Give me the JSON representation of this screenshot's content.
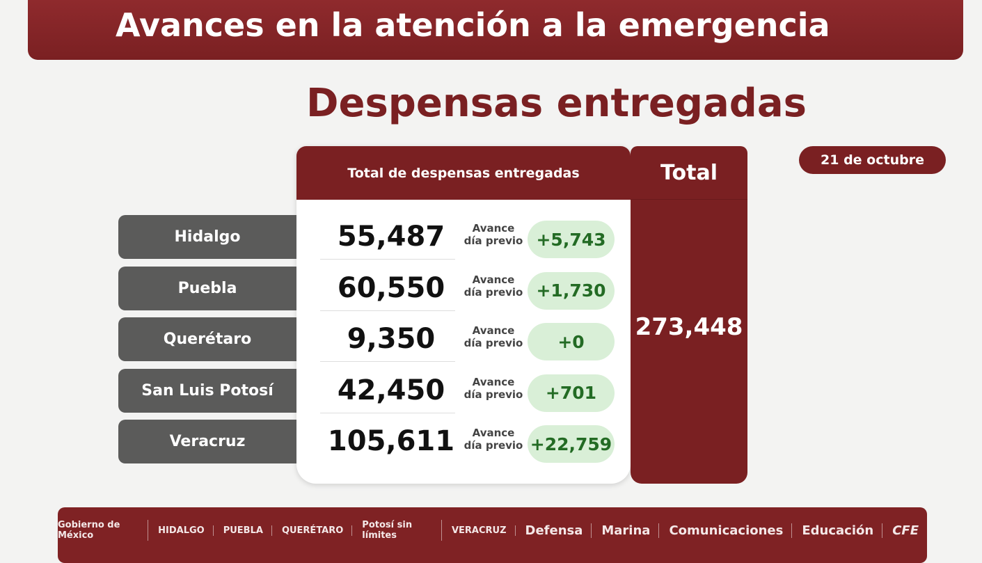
{
  "header": {
    "title": "Avances en la atención a la emergencia"
  },
  "subtitle": "Despensas entregadas",
  "date": "21 de octubre",
  "table": {
    "column_header": "Total de despensas entregadas",
    "total_header": "Total",
    "total_value": "273,448",
    "rows": [
      {
        "state": "Hidalgo",
        "value": "55,487",
        "label": "Avance día previo",
        "delta": "+5,743"
      },
      {
        "state": "Puebla",
        "value": "60,550",
        "label": "Avance día previo",
        "delta": "+1,730"
      },
      {
        "state": "Querétaro",
        "value": "9,350",
        "label": "Avance día previo",
        "delta": "+0"
      },
      {
        "state": "San Luis Potosí",
        "value": "42,450",
        "label": "Avance día previo",
        "delta": "+701"
      },
      {
        "state": "Veracruz",
        "value": "105,611",
        "label": "Avance día previo",
        "delta": "+22,759"
      }
    ]
  },
  "footer": {
    "logos": [
      "Gobierno de México",
      "HIDALGO",
      "PUEBLA",
      "QUERÉTARO",
      "Potosí sin límites",
      "VERACRUZ",
      "Defensa",
      "Marina",
      "Comunicaciones",
      "Educación",
      "CFE"
    ]
  },
  "colors": {
    "brand": "#7a2022",
    "state_bg": "#5b5b5a",
    "delta_bg": "#d9efd7",
    "delta_text": "#236b24"
  }
}
